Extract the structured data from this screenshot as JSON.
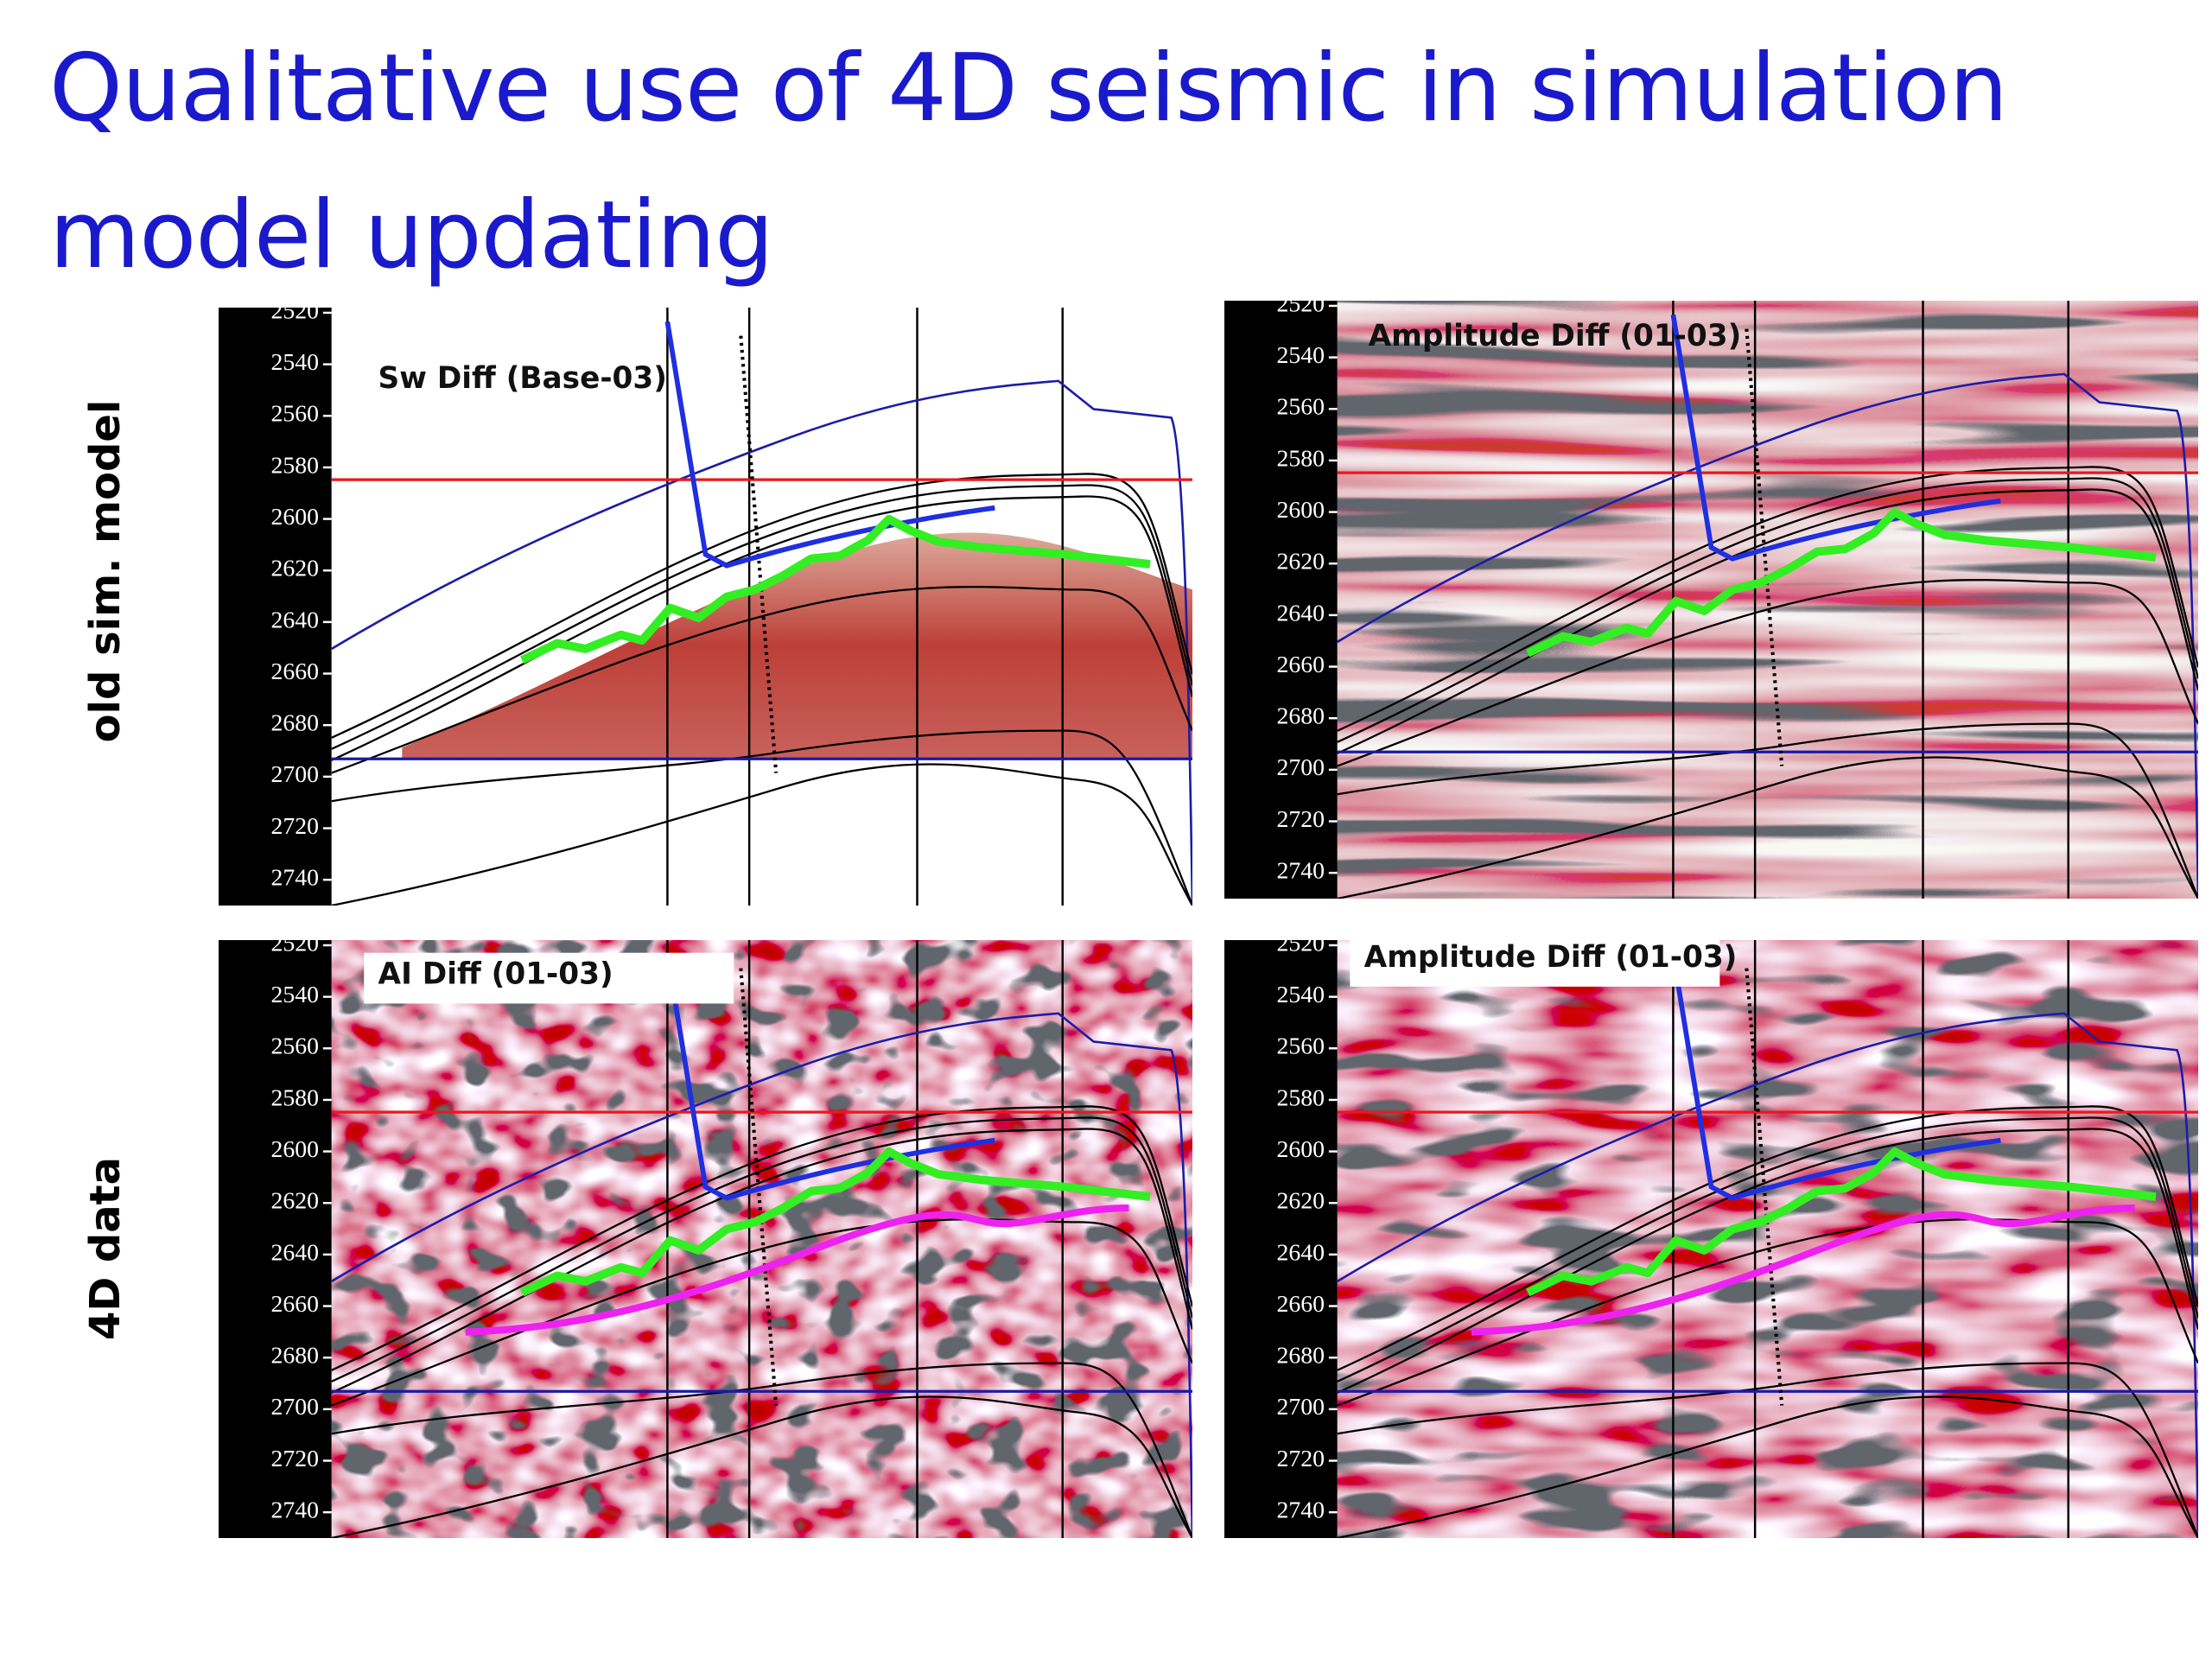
{
  "title": "Qualitative use of 4D seismic in simulation model updating",
  "rows": [
    {
      "label": "old sim. model"
    },
    {
      "label": "4D data"
    }
  ],
  "panels": [
    {
      "label": "Sw Diff (Base-03)",
      "ylim": [
        2518,
        2750
      ],
      "yticks": [
        2520,
        2540,
        2560,
        2580,
        2600,
        2620,
        2640,
        2660,
        2680,
        2700,
        2720,
        2740
      ]
    },
    {
      "label": "Amplitude Diff (01-03)",
      "ylim": [
        2518,
        2750
      ],
      "yticks": [
        2520,
        2540,
        2560,
        2580,
        2600,
        2620,
        2640,
        2660,
        2680,
        2700,
        2720,
        2740
      ]
    },
    {
      "label": "AI Diff (01-03)",
      "ylim": [
        2518,
        2750
      ],
      "yticks": [
        2520,
        2540,
        2560,
        2580,
        2600,
        2620,
        2640,
        2660,
        2680,
        2700,
        2720,
        2740
      ]
    },
    {
      "label": "Amplitude Diff (01-03)",
      "ylim": [
        2518,
        2750
      ],
      "yticks": [
        2520,
        2540,
        2560,
        2580,
        2600,
        2620,
        2640,
        2660,
        2680,
        2700,
        2720,
        2740
      ]
    }
  ]
}
